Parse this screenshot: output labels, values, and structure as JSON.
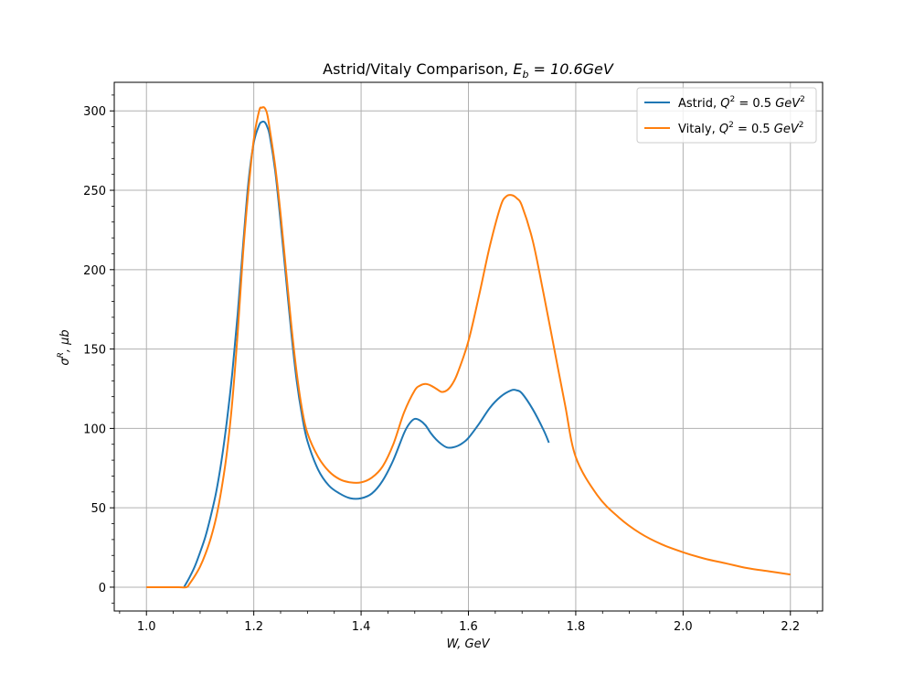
{
  "chart_data": {
    "type": "line",
    "title_text": "Astrid/Vitaly Comparison, ",
    "title_math": "E",
    "title_math_sub": "b",
    "title_math_rest": " = 10.6GeV",
    "xlabel": "W, GeV",
    "ylabel": "σR, μb",
    "xlim": [
      0.94,
      2.26
    ],
    "ylim": [
      -15,
      318
    ],
    "xticks": [
      1.0,
      1.2,
      1.4,
      1.6,
      1.8,
      2.0,
      2.2
    ],
    "xtick_labels": [
      "1.0",
      "1.2",
      "1.4",
      "1.6",
      "1.8",
      "2.0",
      "2.2"
    ],
    "yticks": [
      0,
      50,
      100,
      150,
      200,
      250,
      300
    ],
    "ytick_labels": [
      "0",
      "50",
      "100",
      "150",
      "200",
      "250",
      "300"
    ],
    "grid": true,
    "legend_position": "top-right",
    "series": [
      {
        "name": "Astrid, Q2 = 0.5 GeV2",
        "legend_prefix": "Astrid, ",
        "color": "#1f77b4",
        "x": [
          1.07,
          1.08,
          1.09,
          1.1,
          1.11,
          1.12,
          1.13,
          1.14,
          1.15,
          1.16,
          1.17,
          1.18,
          1.19,
          1.2,
          1.21,
          1.215,
          1.22,
          1.225,
          1.23,
          1.24,
          1.25,
          1.26,
          1.27,
          1.28,
          1.29,
          1.3,
          1.32,
          1.34,
          1.36,
          1.38,
          1.4,
          1.42,
          1.44,
          1.46,
          1.48,
          1.49,
          1.5,
          1.51,
          1.52,
          1.53,
          1.54,
          1.55,
          1.56,
          1.57,
          1.58,
          1.59,
          1.6,
          1.62,
          1.64,
          1.66,
          1.68,
          1.69,
          1.7,
          1.72,
          1.74,
          1.75
        ],
        "y": [
          0,
          6,
          13,
          22,
          32,
          45,
          60,
          80,
          105,
          135,
          172,
          215,
          255,
          280,
          291,
          293,
          293,
          290,
          284,
          262,
          230,
          195,
          160,
          130,
          108,
          92,
          74,
          64,
          59,
          56,
          56,
          59,
          67,
          80,
          97,
          103,
          106,
          105,
          102,
          97,
          93,
          90,
          88,
          88,
          89,
          91,
          94,
          103,
          113,
          120,
          124,
          124,
          122,
          112,
          99,
          91
        ]
      },
      {
        "name": "Vitaly, Q2 = 0.5 GeV2",
        "legend_prefix": "Vitaly, ",
        "color": "#ff7f0e",
        "x": [
          1.0,
          1.02,
          1.04,
          1.06,
          1.075,
          1.08,
          1.09,
          1.1,
          1.11,
          1.12,
          1.13,
          1.14,
          1.15,
          1.16,
          1.17,
          1.18,
          1.19,
          1.2,
          1.21,
          1.215,
          1.22,
          1.225,
          1.23,
          1.24,
          1.25,
          1.26,
          1.27,
          1.28,
          1.29,
          1.3,
          1.32,
          1.34,
          1.36,
          1.38,
          1.4,
          1.42,
          1.44,
          1.46,
          1.48,
          1.5,
          1.51,
          1.52,
          1.53,
          1.54,
          1.55,
          1.56,
          1.57,
          1.58,
          1.6,
          1.62,
          1.64,
          1.66,
          1.67,
          1.68,
          1.69,
          1.7,
          1.72,
          1.74,
          1.76,
          1.78,
          1.8,
          1.84,
          1.88,
          1.92,
          1.96,
          2.0,
          2.04,
          2.08,
          2.12,
          2.16,
          2.2
        ],
        "y": [
          0,
          0,
          0,
          0,
          0,
          2,
          7,
          13,
          21,
          31,
          44,
          62,
          85,
          117,
          160,
          210,
          250,
          282,
          300,
          302,
          302,
          298,
          288,
          265,
          235,
          200,
          165,
          135,
          112,
          97,
          82,
          73,
          68,
          66,
          66,
          69,
          76,
          90,
          110,
          124,
          127,
          128,
          127,
          125,
          123,
          124,
          128,
          135,
          155,
          184,
          215,
          240,
          246,
          247,
          245,
          240,
          218,
          185,
          150,
          115,
          82,
          58,
          44,
          34,
          27,
          22,
          18,
          15,
          12,
          10,
          8
        ]
      }
    ]
  }
}
